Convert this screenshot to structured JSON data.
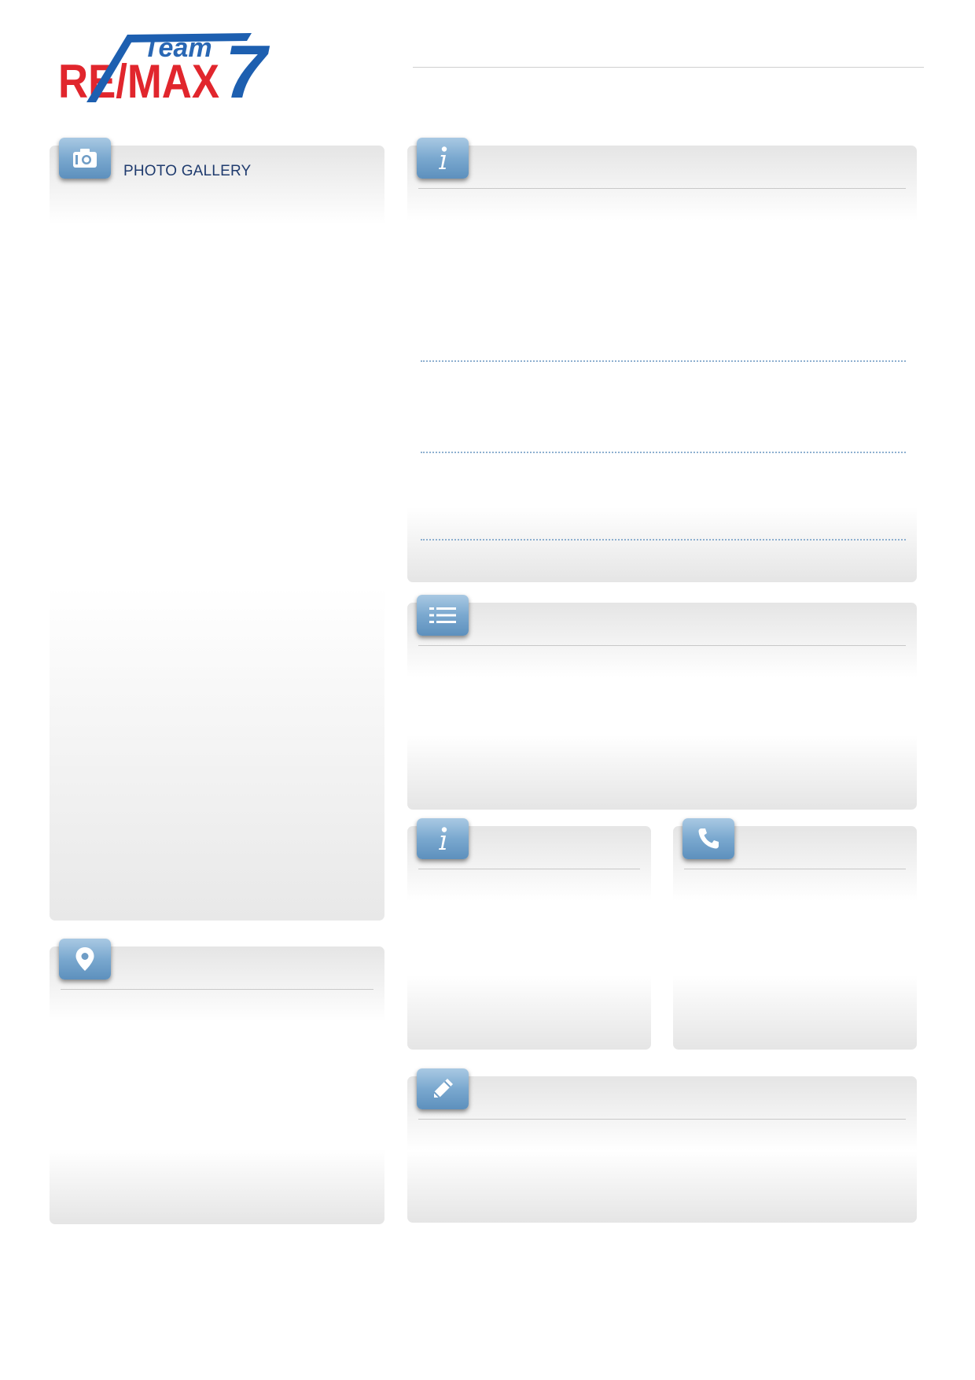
{
  "logo": {
    "brand": "RE/MAX",
    "team_word": "Team",
    "team_number": "7",
    "colors": {
      "red": "#e1262d",
      "blue": "#1d5fb0"
    }
  },
  "panels": {
    "gallery": {
      "label": "PHOTO GALLERY",
      "icon": "camera-icon"
    },
    "location": {
      "icon": "map-pin-icon"
    },
    "info_main": {
      "icon": "info-icon"
    },
    "features": {
      "icon": "list-icon"
    },
    "info_small": {
      "icon": "info-icon"
    },
    "contact": {
      "icon": "phone-icon"
    },
    "notes": {
      "icon": "pencil-icon"
    }
  },
  "colors": {
    "badge_top": "#a9c9e3",
    "badge_bottom": "#5d90bd",
    "panel_shade": "#e5e5e5",
    "label_text": "#1f3b6e",
    "dotted_rule": "#8eb0d0"
  }
}
